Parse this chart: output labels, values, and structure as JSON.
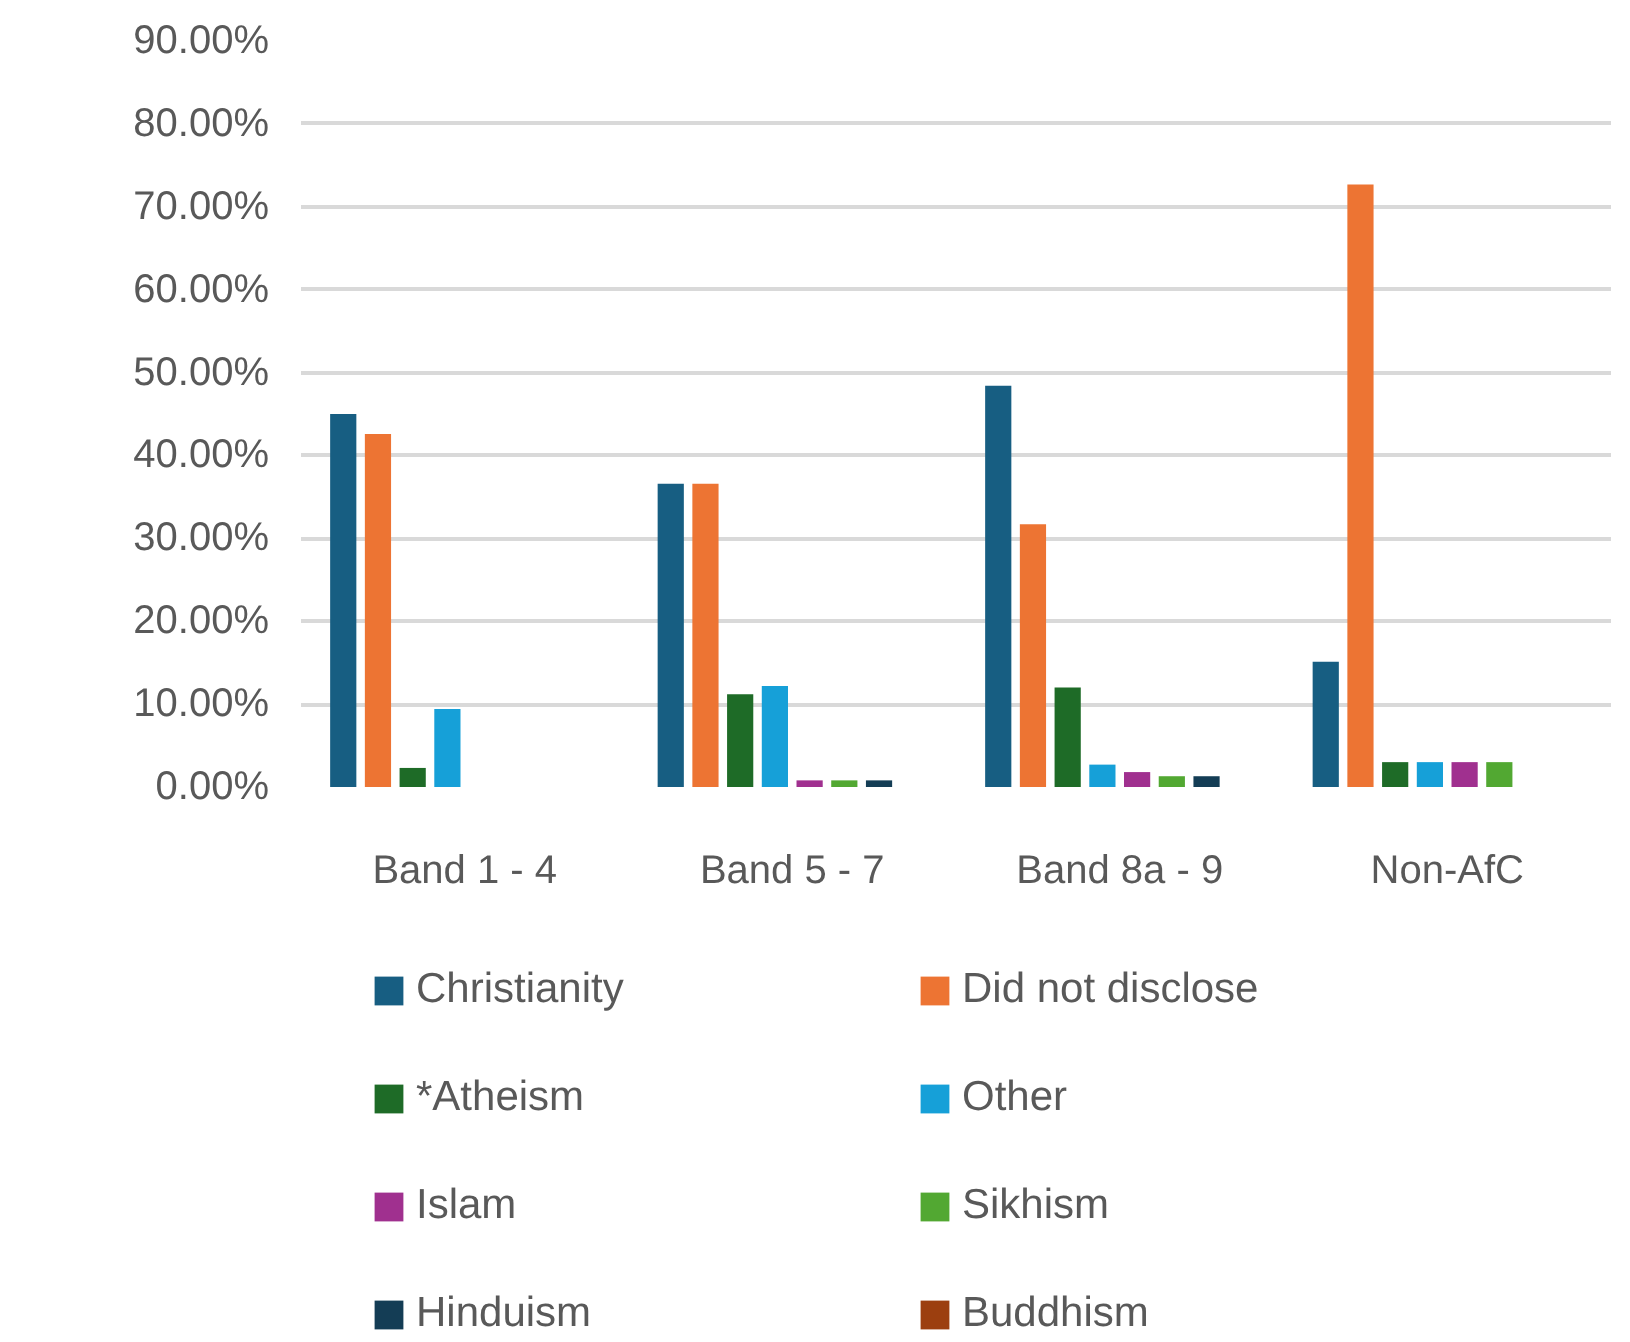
{
  "chart_data": {
    "type": "bar",
    "categories": [
      "Band 1 - 4",
      "Band 5 - 7",
      "Band 8a - 9",
      "Non-AfC"
    ],
    "series": [
      {
        "name": "Christianity",
        "color": "#175e82",
        "values": [
          45.0,
          36.6,
          48.4,
          15.1
        ]
      },
      {
        "name": "Did not disclose",
        "color": "#ed7433",
        "values": [
          42.6,
          36.6,
          31.7,
          72.7
        ]
      },
      {
        "name": "*Atheism",
        "color": "#1e6b27",
        "values": [
          2.3,
          11.2,
          12.0,
          3.0
        ]
      },
      {
        "name": "Other",
        "color": "#16a0d8",
        "values": [
          9.4,
          12.2,
          2.7,
          3.0
        ]
      },
      {
        "name": "Islam",
        "color": "#a0308f",
        "values": [
          null,
          0.8,
          1.8,
          3.0
        ]
      },
      {
        "name": "Sikhism",
        "color": "#52a832",
        "values": [
          null,
          0.8,
          1.3,
          3.0
        ]
      },
      {
        "name": "Hinduism",
        "color": "#143d55",
        "values": [
          null,
          0.8,
          1.3,
          null
        ]
      },
      {
        "name": "Buddhism",
        "color": "#9c3f0f",
        "values": [
          null,
          null,
          null,
          null
        ]
      }
    ],
    "ylim": [
      0,
      90
    ],
    "yticks": [
      {
        "value": 0,
        "label": "0.00%"
      },
      {
        "value": 10,
        "label": "10.00%"
      },
      {
        "value": 20,
        "label": "20.00%"
      },
      {
        "value": 30,
        "label": "30.00%"
      },
      {
        "value": 40,
        "label": "40.00%"
      },
      {
        "value": 50,
        "label": "50.00%"
      },
      {
        "value": 60,
        "label": "60.00%"
      },
      {
        "value": 70,
        "label": "70.00%"
      },
      {
        "value": 80,
        "label": "80.00%"
      },
      {
        "value": 90,
        "label": "90.00%"
      }
    ],
    "grid": "y",
    "legend": "bottom"
  }
}
